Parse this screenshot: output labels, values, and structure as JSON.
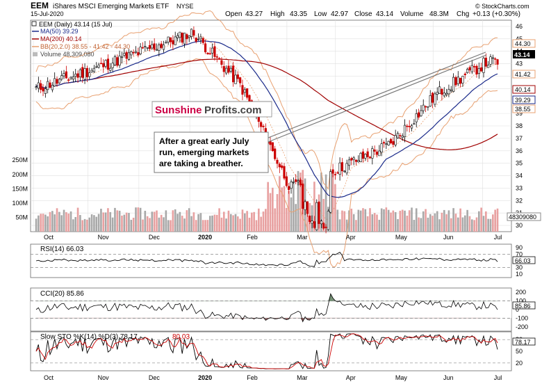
{
  "header": {
    "ticker": "EEM",
    "name": "iShares MSCI Emerging Markets ETF",
    "exchange": "NYSE",
    "date": "15-Jul-2020",
    "open_label": "Open",
    "open": "43.27",
    "high_label": "High",
    "high": "43.35",
    "low_label": "Low",
    "low": "42.97",
    "close_label": "Close",
    "close": "43.14",
    "volume_label": "Volume",
    "volume": "48.3M",
    "chg_label": "Chg",
    "chg": "+0.13 (+0.30%)",
    "copyright": "© StockCharts.com"
  },
  "legend": {
    "main": "EEM (Daily) 43.14 (15 Jul)",
    "ma50": "MA(50) 39.29",
    "ma200": "MA(200) 40.14",
    "bb": "BB(20,2.0) 38.55 - 41.42 - 44.30",
    "volume": "Volume 48,309,080"
  },
  "price_tags": {
    "close": "43.14",
    "bb_upper": "44.30",
    "bb_mid": "41.42",
    "ma200": "40.14",
    "ma50": "39.29",
    "bb_lower": "38.55",
    "volume": "48309080"
  },
  "watermark": {
    "part1": "Sunshine",
    "part2": "Profits.com"
  },
  "annotation": "After a great early July run, emerging markets are taking a breather.",
  "indicators": {
    "rsi": {
      "label": "RSI(14) 66.03",
      "value": "66.03",
      "ticks": [
        "90",
        "70",
        "50",
        "30",
        "10"
      ]
    },
    "cci": {
      "label": "CCI(20) 85.86",
      "value": "85.86",
      "ticks": [
        "200",
        "100",
        "0",
        "-100",
        "-200"
      ]
    },
    "sto": {
      "label": "Slow STO %K(14) %D(3) 78.17,",
      "label_d": "80.03",
      "value": "78.17",
      "ticks": [
        "80",
        "50",
        "20"
      ]
    }
  },
  "colors": {
    "up": "#ffffff",
    "down": "#cc0000",
    "ma50": "#1a2a8a",
    "ma200": "#a00000",
    "bb": "#e8a070",
    "volume_up": "#a8a8a8",
    "volume_down": "#e8a0a0",
    "cci_fill_pos": "#5f7f5f",
    "cci_fill_neg": "#8a5050",
    "accent": "#cc0044"
  },
  "chart_data": {
    "type": "candlestick",
    "title": "EEM iShares MSCI Emerging Markets ETF",
    "x_months": [
      "Oct",
      "Nov",
      "Dec",
      "2020",
      "Feb",
      "Mar",
      "Apr",
      "May",
      "Jun",
      "Jul"
    ],
    "y_ticks": [
      "46",
      "45",
      "44",
      "43",
      "42",
      "41",
      "40",
      "39",
      "38",
      "37",
      "36",
      "35",
      "34",
      "33",
      "32",
      "31",
      "30"
    ],
    "ylim": [
      29.5,
      46.5
    ],
    "volume_ticks": [
      "250M",
      "200M",
      "150M",
      "100M",
      "50M"
    ],
    "monthly_close": [
      {
        "month": "Oct",
        "close": 41.0
      },
      {
        "month": "Nov",
        "close": 42.5
      },
      {
        "month": "Dec",
        "close": 44.0
      },
      {
        "month": "Jan",
        "close": 45.5
      },
      {
        "month": "Feb",
        "close": 41.3
      },
      {
        "month": "Mar",
        "close": 33.0
      },
      {
        "month": "Apr",
        "close": 34.6
      },
      {
        "month": "May",
        "close": 36.5
      },
      {
        "month": "Jun",
        "close": 40.6
      },
      {
        "month": "Jul",
        "close": 43.14
      }
    ],
    "series": [
      {
        "name": "MA(50)",
        "last": 39.29
      },
      {
        "name": "MA(200)",
        "last": 40.14
      },
      {
        "name": "BB(20,2.0)",
        "last": [
          38.55,
          41.42,
          44.3
        ]
      }
    ],
    "indicators": [
      {
        "name": "RSI(14)",
        "last": 66.03,
        "range": [
          0,
          100
        ]
      },
      {
        "name": "CCI(20)",
        "last": 85.86,
        "range": [
          -250,
          250
        ]
      },
      {
        "name": "Slow STO %K(14) %D(3)",
        "last": [
          78.17,
          80.03
        ],
        "range": [
          0,
          100
        ]
      }
    ]
  }
}
